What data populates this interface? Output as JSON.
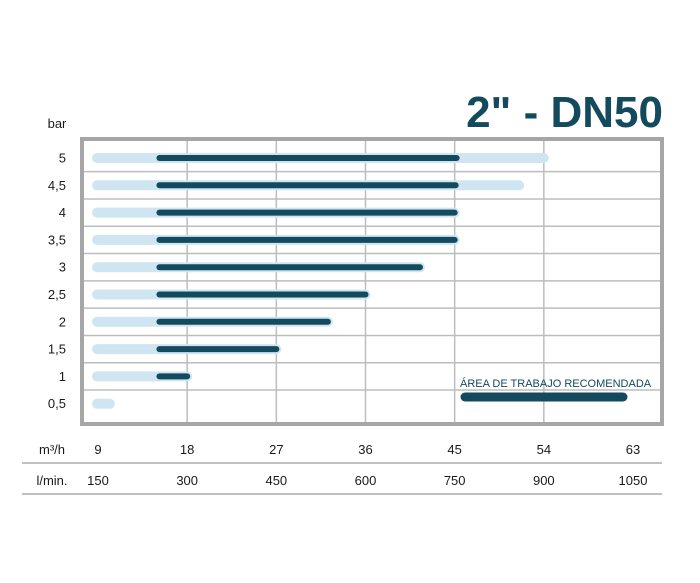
{
  "chart_data": {
    "type": "bar",
    "title": "2\" - DN50",
    "ylabel": "bar",
    "x_rows": [
      {
        "label": "m³/h",
        "ticks": [
          "9",
          "18",
          "27",
          "36",
          "45",
          "54",
          "63"
        ]
      },
      {
        "label": "l/min.",
        "ticks": [
          "150",
          "300",
          "450",
          "600",
          "750",
          "900",
          "1050"
        ]
      }
    ],
    "xlim": [
      9,
      63
    ],
    "x_grid_values": [
      18,
      27,
      36,
      45,
      54
    ],
    "categories": [
      "5",
      "4,5",
      "4",
      "3,5",
      "3",
      "2,5",
      "2",
      "1,5",
      "1",
      "0,5"
    ],
    "series": [
      {
        "name": "",
        "values_start": [
          8.9,
          8.9,
          8.9,
          8.9,
          8.9,
          8.9,
          8.9,
          8.9,
          8.9,
          8.9
        ],
        "values_end": [
          54.0,
          51.5,
          45.0,
          45.0,
          41.5,
          36.0,
          32.2,
          27.0,
          18.0,
          10.2
        ]
      },
      {
        "name": "ÁREA DE TRABAJO RECOMENDADA",
        "values_start": [
          15.2,
          15.2,
          15.2,
          15.2,
          15.2,
          15.2,
          15.2,
          15.2,
          15.2,
          null
        ],
        "values_end": [
          45.2,
          45.1,
          45.0,
          45.0,
          41.5,
          36.0,
          32.2,
          27.0,
          18.0,
          null
        ]
      }
    ],
    "colors": {
      "range": "#cfe6f2",
      "recommended": "#134a5e",
      "frame": "#a6a6a6",
      "grid": "#bdbdbd"
    },
    "legend": {
      "text": "ÁREA DE TRABAJO RECOMENDADA",
      "placement": "bottom-right"
    },
    "grid": true
  }
}
